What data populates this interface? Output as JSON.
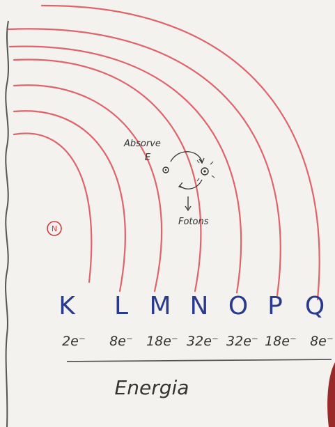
{
  "diagram": {
    "nucleus_symbol": "N",
    "shells": [
      {
        "letter": "K",
        "capacity": "2e⁻"
      },
      {
        "letter": "L",
        "capacity": "8e⁻"
      },
      {
        "letter": "M",
        "capacity": "18e⁻"
      },
      {
        "letter": "N",
        "capacity": "32e⁻"
      },
      {
        "letter": "O",
        "capacity": "32e⁻"
      },
      {
        "letter": "P",
        "capacity": "18e⁻"
      },
      {
        "letter": "Q",
        "capacity": "8e⁻"
      }
    ],
    "absorb_label_1": "Absorve",
    "absorb_label_2": "E",
    "emit_label": "Fotons",
    "axis_title": "Energia",
    "colors": {
      "shell_line": "#e0636a",
      "nucleus": "#d43a40",
      "shell_letters": "#2a3a8c",
      "ink": "#333333"
    }
  }
}
